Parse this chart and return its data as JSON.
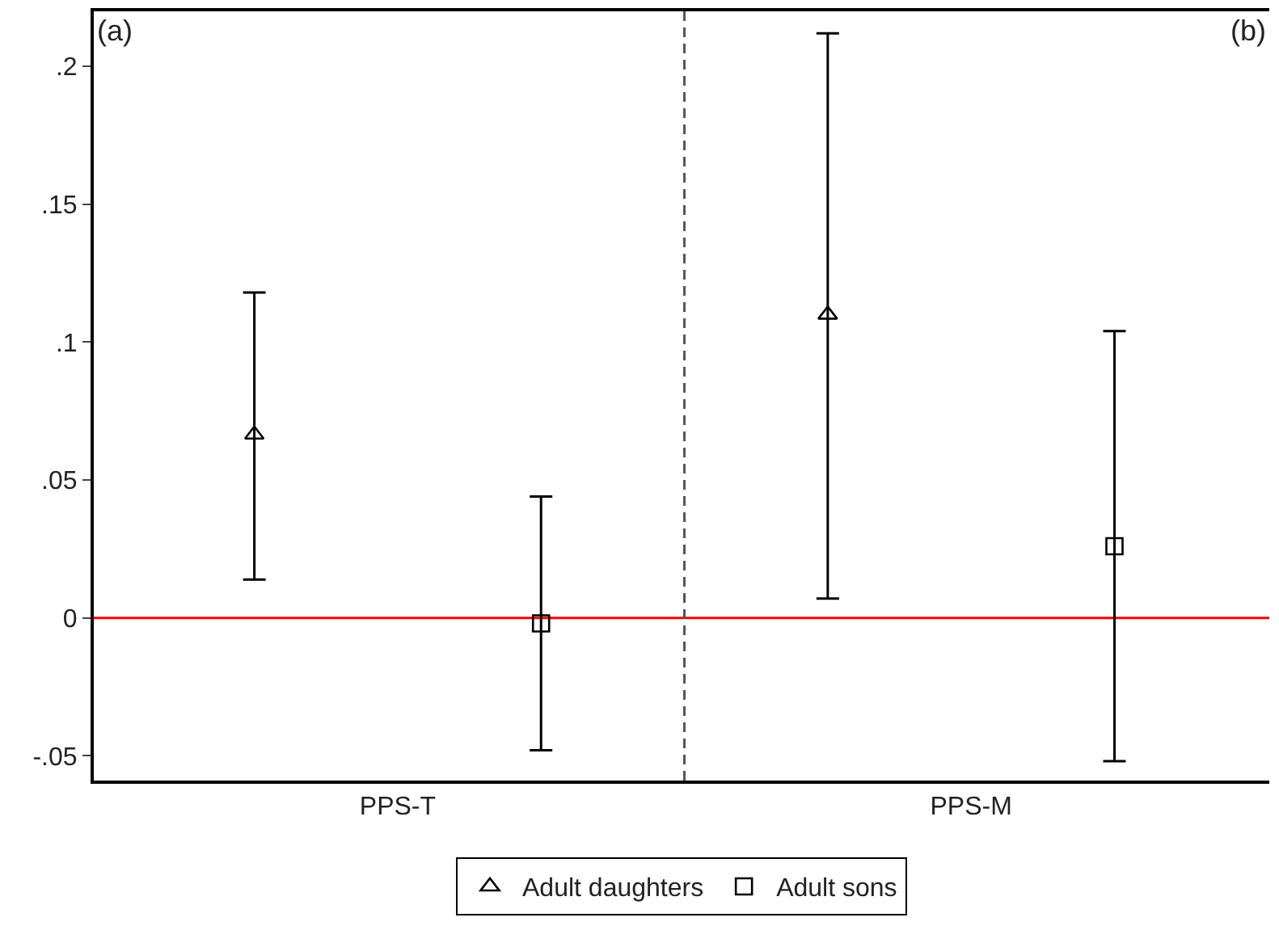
{
  "chart_data": {
    "type": "scatter",
    "categories": [
      "PPS-T",
      "PPS-M"
    ],
    "series": [
      {
        "name": "Adult daughters",
        "color": "#000000",
        "marker": "triangle",
        "values": [
          0.0665,
          0.11
        ],
        "errors": [
          [
            0.0139,
            0.118
          ],
          [
            0.007,
            0.212
          ]
        ]
      },
      {
        "name": "Adult sons",
        "color": "#000000",
        "marker": "square",
        "values": [
          -0.002,
          0.026
        ],
        "errors": [
          [
            -0.048,
            0.044
          ],
          [
            -0.052,
            0.104
          ]
        ]
      }
    ],
    "ylim": [
      -0.059,
      0.22
    ],
    "yticks": [
      {
        "value": -0.05,
        "label": "-.05"
      },
      0,
      {
        "value": 0.05,
        "label": ".05"
      },
      {
        "value": 0.1,
        "label": ".1"
      },
      {
        "value": 0.15,
        "label": ".15"
      },
      {
        "value": 0.2,
        "label": ".2"
      }
    ],
    "ref_lines": [
      {
        "axis": "y",
        "value": 0,
        "color": "#ff0000",
        "line_style": "solid"
      }
    ],
    "annotations": [
      "(a)",
      "(b)"
    ],
    "grid": false,
    "legend": "bottom"
  }
}
